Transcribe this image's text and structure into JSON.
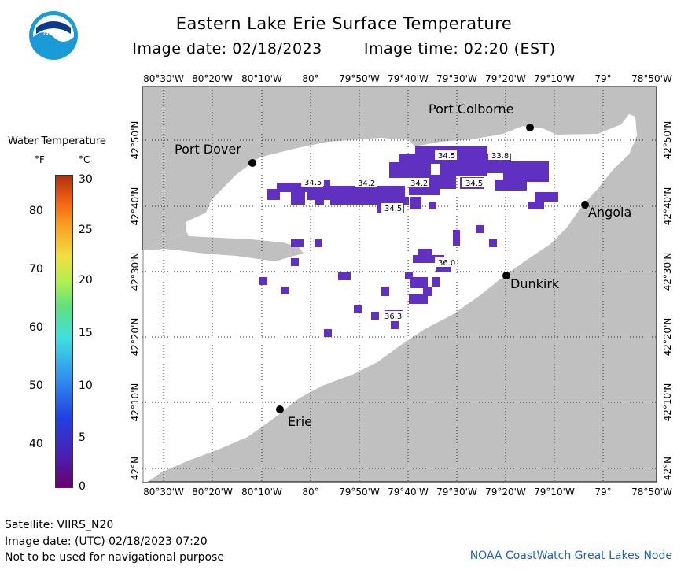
{
  "title": "Eastern Lake Erie Surface Temperature",
  "image_date_label": "Image date: 02/18/2023",
  "image_time_label": "Image time: 02:20 (EST)",
  "logo_text": "NOAA",
  "legend": {
    "title": "Water Temperature",
    "unit_f": "°F",
    "unit_c": "°C",
    "f_ticks": [
      "80",
      "70",
      "60",
      "50",
      "40"
    ],
    "c_ticks": [
      "30",
      "25",
      "20",
      "15",
      "10",
      "5",
      "0"
    ],
    "colors": [
      "#6a0070",
      "#4a20b0",
      "#2040e0",
      "#2f90f0",
      "#40e0e0",
      "#60e080",
      "#b0f050",
      "#f0e040",
      "#f8a020",
      "#f06010",
      "#b03010"
    ]
  },
  "map": {
    "lon_labels": [
      "80°30'W",
      "80°20'W",
      "80°10'W",
      "80°",
      "79°50'W",
      "79°40'W",
      "79°30'W",
      "79°20'W",
      "79°10'W",
      "79°",
      "78°50'W"
    ],
    "lat_labels": [
      "42°50'N",
      "42°40'N",
      "42°30'N",
      "42°20'N",
      "42°10'N",
      "42°N"
    ],
    "land_color": "#c0c0c0",
    "water_color": "#ffffff",
    "ice_color": "#6030c0",
    "cities": [
      {
        "name": "Port Colborne"
      },
      {
        "name": "Port Dover"
      },
      {
        "name": "Angola"
      },
      {
        "name": "Dunkirk"
      },
      {
        "name": "Erie"
      }
    ],
    "temp_labels": [
      "34.5",
      "33.8",
      "34.5",
      "34.2",
      "34.2",
      "34.5",
      "34.5",
      "36.0",
      "36.3"
    ]
  },
  "footer": {
    "satellite": "Satellite: VIIRS_N20",
    "utc_date": "Image date: (UTC) 02/18/2023  07:20",
    "disclaimer": "Not to be used for navigational purpose",
    "credit": "NOAA CoastWatch Great Lakes Node"
  }
}
